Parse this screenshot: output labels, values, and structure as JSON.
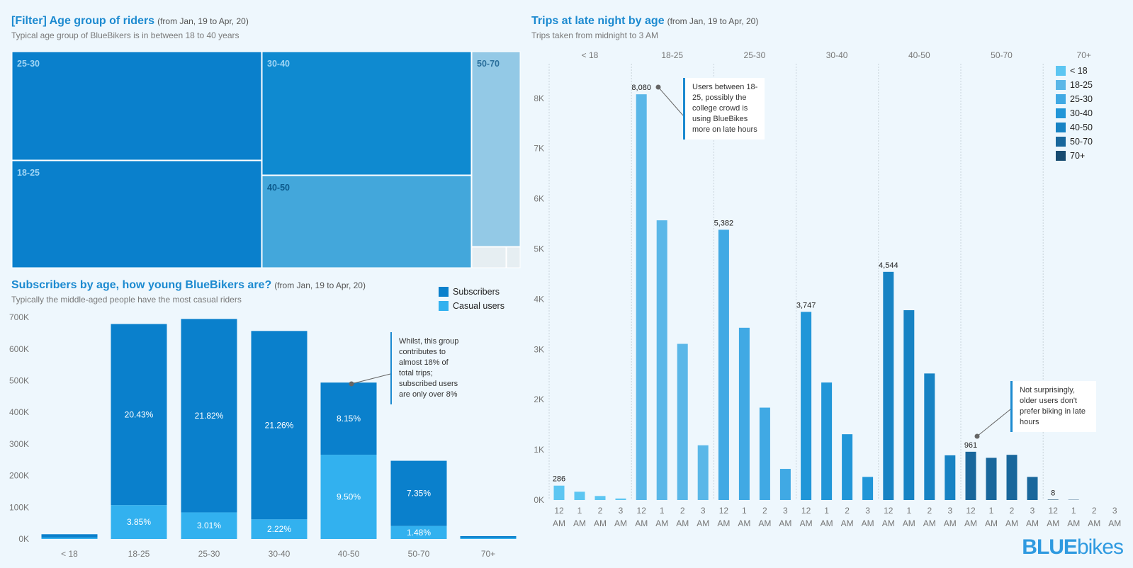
{
  "treemap": {
    "title": "[Filter] Age group of riders",
    "range": "(from Jan, 19 to Apr, 20)",
    "subtitle": "Typical age group of BlueBikers is in between 18 to 40 years",
    "cells": [
      {
        "label": "25-30",
        "color": "#0a80cc",
        "text_color": "#9fd5f5"
      },
      {
        "label": "18-25",
        "color": "#0a80cc",
        "text_color": "#9fd5f5"
      },
      {
        "label": "30-40",
        "color": "#0f8ad0",
        "text_color": "#9fd5f5"
      },
      {
        "label": "40-50",
        "color": "#43a7db",
        "text_color": "#0c5a8c"
      },
      {
        "label": "50-70",
        "color": "#93c9e6",
        "text_color": "#2a6f9c"
      },
      {
        "label": "",
        "color": "#e6eef2",
        "text_color": "#333"
      },
      {
        "label": "",
        "color": "#e6eef2",
        "text_color": "#333"
      }
    ]
  },
  "stacked": {
    "title": "Subscribers by age, how young BlueBikers are?",
    "range": "(from Jan, 19 to Apr, 20)",
    "subtitle": "Typically the middle-aged people have the most casual riders",
    "legend": [
      {
        "name": "Subscribers",
        "color": "#0a80cc"
      },
      {
        "name": "Casual users",
        "color": "#32b1ef"
      }
    ],
    "note": "Whilst, this group contributes to almost 18% of total trips; subscribed users are only over 8%"
  },
  "latenight": {
    "title": "Trips at late night by age",
    "range": "(from Jan, 19 to Apr, 20)",
    "subtitle": "Trips taken from midnight to 3 AM",
    "legend": [
      {
        "name": "< 18",
        "color": "#5cc6f2"
      },
      {
        "name": "18-25",
        "color": "#5ab7e8"
      },
      {
        "name": "25-30",
        "color": "#40a9e4"
      },
      {
        "name": "30-40",
        "color": "#2196d8"
      },
      {
        "name": "40-50",
        "color": "#1783c4"
      },
      {
        "name": "50-70",
        "color": "#19679c"
      },
      {
        "name": "70+",
        "color": "#174b70"
      }
    ],
    "note1": "Users between 18-25, possibly the college crowd is using BlueBikes more on late hours",
    "note2": "Not surprisingly, older users don't prefer biking in late hours"
  },
  "chart_data": [
    {
      "type": "bar",
      "stacked": true,
      "categories": [
        "< 18",
        "18-25",
        "25-30",
        "30-40",
        "40-50",
        "50-70",
        "70+"
      ],
      "ylim": [
        0,
        750000
      ],
      "yticks": [
        "0K",
        "100K",
        "200K",
        "300K",
        "400K",
        "500K",
        "600K",
        "700K"
      ],
      "series": [
        {
          "name": "Casual users",
          "values": [
            4000,
            107000,
            84000,
            62000,
            266000,
            41000,
            3000
          ],
          "labels": [
            "",
            "3.85%",
            "3.01%",
            "2.22%",
            "9.50%",
            "1.48%",
            ""
          ]
        },
        {
          "name": "Subscribers",
          "values": [
            11000,
            572000,
            611000,
            595000,
            228000,
            206000,
            6000
          ],
          "labels": [
            "",
            "20.43%",
            "21.82%",
            "21.26%",
            "8.15%",
            "7.35%",
            ""
          ]
        }
      ]
    },
    {
      "type": "bar",
      "groups": [
        "< 18",
        "18-25",
        "25-30",
        "30-40",
        "40-50",
        "50-70",
        "70+"
      ],
      "x": [
        "12 AM",
        "1 AM",
        "2 AM",
        "3 AM"
      ],
      "ylim": [
        0,
        8700
      ],
      "yticks": [
        "0K",
        "1K",
        "2K",
        "3K",
        "4K",
        "5K",
        "6K",
        "7K",
        "8K"
      ],
      "series": [
        {
          "name": "< 18",
          "values": [
            286,
            165,
            80,
            30
          ]
        },
        {
          "name": "18-25",
          "values": [
            8080,
            5570,
            3110,
            1090
          ]
        },
        {
          "name": "25-30",
          "values": [
            5382,
            3430,
            1840,
            620
          ]
        },
        {
          "name": "30-40",
          "values": [
            3747,
            2340,
            1310,
            460
          ]
        },
        {
          "name": "40-50",
          "values": [
            4544,
            3780,
            2520,
            890
          ]
        },
        {
          "name": "50-70",
          "values": [
            961,
            840,
            900,
            460
          ]
        },
        {
          "name": "70+",
          "values": [
            8,
            5,
            0,
            0
          ]
        }
      ],
      "labels": {
        "< 18": [
          286
        ],
        "18-25": [
          8080
        ],
        "25-30": [
          5382
        ],
        "30-40": [
          3747
        ],
        "40-50": [
          4544
        ],
        "50-70": [
          961
        ],
        "70+": [
          8
        ]
      },
      "label_text": {
        "< 18": "286",
        "18-25": "8,080",
        "25-30": "5,382",
        "30-40": "3,747",
        "40-50": "4,544",
        "50-70": "961",
        "70+": "8"
      }
    }
  ],
  "logo": {
    "bold": "BLUE",
    "light": "bikes"
  }
}
